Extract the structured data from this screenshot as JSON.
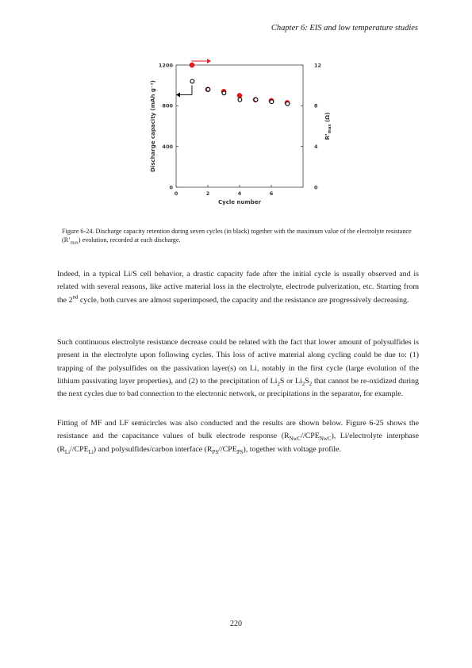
{
  "header": {
    "text": "Chapter 6: EIS and low temperature studies"
  },
  "figure": {
    "caption_parts": [
      "Figure 6-24. Discharge capacity retention during seven cycles (in black) together with the maximum value of the electrolyte resistance (R’",
      "max",
      ") evolution, recorded at each discharge."
    ]
  },
  "chart_data": {
    "type": "scatter",
    "xlabel": "Cycle number",
    "ylabel": "Discharge capacity (mAh g⁻¹)",
    "y2label_main": "R’",
    "y2label_sub": "max",
    "y2label_unit": " (Ω)",
    "xlim": [
      0,
      8
    ],
    "ylim": [
      0,
      1200
    ],
    "y2lim": [
      0,
      12
    ],
    "xticks": [
      "0",
      "2",
      "4",
      "6"
    ],
    "yticks": [
      "0",
      "400",
      "800",
      "1200"
    ],
    "y2ticks": [
      "0",
      "4",
      "8",
      "12"
    ],
    "series": [
      {
        "color": "#e31a1c",
        "marker": "filled-circle",
        "axis": "right",
        "x": [
          1,
          2,
          3,
          4,
          5,
          6,
          7
        ],
        "y": [
          12.0,
          9.6,
          9.4,
          9.0,
          8.6,
          8.5,
          8.3
        ]
      },
      {
        "color": "#000000",
        "marker": "open-circle",
        "axis": "left",
        "x": [
          1,
          2,
          3,
          4,
          5,
          6,
          7
        ],
        "y": [
          1040,
          960,
          925,
          860,
          860,
          840,
          820
        ]
      }
    ]
  },
  "paragraphs": {
    "p1": [
      "Indeed, in a typical Li/S cell behavior, a drastic capacity fade after the initial cycle is usually observed and is related with several reasons, like active material loss in the electrolyte, electrode pulverization, etc. Starting from the 2",
      "nd",
      " cycle, both curves are almost superimposed, the capacity and the resistance are progressively decreasing."
    ],
    "p2": [
      "Such continuous electrolyte resistance decrease could be related with the fact that lower amount of polysulfides is present in the electrolyte upon following cycles. This loss of active material along cycling could be due to: (1) trapping of the polysulfides on the passivation layer(s) on Li, notably in the first cycle (large evolution of the lithium passivating layer properties), and (2) to the precipitation of Li",
      "2",
      "S or Li",
      "2",
      "S",
      "2",
      " that cannot be re-oxidized during the next cycles due to bad connection to the electronic network, or precipitations in the separator, for example."
    ],
    "p3": [
      "Fitting of MF and LF semicircles was also conducted and the results are shown below. Figure 6-25 shows the resistance and the capacitance values of bulk electrode response (R",
      "NwC",
      "//CPE",
      "NwC",
      "), Li/electrolyte interphase (R",
      "Li",
      "//CPE",
      "Li",
      ") and polysulfides/carbon interface (R",
      "PS",
      "//CPE",
      "PS",
      "), together with voltage profile."
    ]
  },
  "page_number": "220"
}
